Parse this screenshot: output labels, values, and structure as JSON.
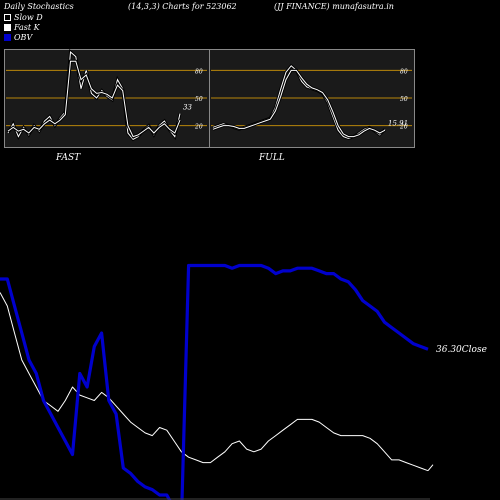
{
  "header": {
    "left": "Daily Stochastics",
    "center": "(14,3,3) Charts for 523062",
    "right": "(JJ FINANCE) munafasutra.in"
  },
  "legend": [
    {
      "label": "Slow  D",
      "color": "#ffffff",
      "style": "outline"
    },
    {
      "label": "Fast K",
      "color": "#ffffff",
      "style": "filled"
    },
    {
      "label": "OBV",
      "color": "#0000cc",
      "style": "filled"
    }
  ],
  "colors": {
    "background": "#000000",
    "panel": "#1a1a1a",
    "level_line": "#b8860b",
    "obv": "#0000cc",
    "price": "#ffffff"
  },
  "chart_data": [
    {
      "type": "line",
      "panel": "fast",
      "title": "FAST",
      "ylim": [
        0,
        100
      ],
      "levels": [
        20,
        50,
        80
      ],
      "level_labels": [
        "20",
        "50",
        "80"
      ],
      "last_value_label": "33",
      "series": [
        {
          "name": "Fast K",
          "values": [
            12,
            22,
            8,
            18,
            10,
            20,
            14,
            25,
            30,
            20,
            28,
            35,
            100,
            95,
            60,
            80,
            55,
            50,
            58,
            52,
            48,
            70,
            60,
            12,
            5,
            8,
            15,
            20,
            10,
            20,
            25,
            15,
            8,
            33
          ]
        },
        {
          "name": "Slow D",
          "values": [
            14,
            18,
            14,
            16,
            12,
            18,
            16,
            22,
            26,
            22,
            26,
            32,
            90,
            90,
            70,
            75,
            60,
            55,
            56,
            54,
            50,
            64,
            58,
            20,
            8,
            10,
            14,
            18,
            12,
            18,
            22,
            16,
            12,
            26
          ]
        }
      ]
    },
    {
      "type": "line",
      "panel": "full",
      "title": "FULL",
      "ylim": [
        0,
        100
      ],
      "levels": [
        20,
        50,
        80
      ],
      "level_labels": [
        "20",
        "50",
        "80"
      ],
      "last_value_label": "15.91",
      "series": [
        {
          "name": "Full K",
          "values": [
            18,
            20,
            22,
            20,
            18,
            16,
            18,
            20,
            22,
            24,
            26,
            28,
            40,
            60,
            78,
            85,
            80,
            68,
            62,
            60,
            58,
            55,
            45,
            30,
            15,
            8,
            6,
            8,
            12,
            16,
            18,
            14,
            10,
            16
          ]
        },
        {
          "name": "Full D",
          "values": [
            16,
            18,
            20,
            20,
            19,
            17,
            17,
            19,
            21,
            23,
            25,
            27,
            36,
            52,
            70,
            80,
            80,
            72,
            65,
            61,
            59,
            56,
            48,
            35,
            20,
            11,
            8,
            8,
            10,
            14,
            17,
            15,
            12,
            15
          ]
        }
      ]
    },
    {
      "type": "line",
      "panel": "obv_price",
      "price_label": "36.30",
      "price_label_suffix": "Close",
      "series": [
        {
          "name": "Close",
          "values": [
            75,
            70,
            60,
            50,
            45,
            40,
            35,
            33,
            31,
            35,
            40,
            37,
            36,
            35,
            38,
            36,
            33,
            30,
            27,
            25,
            23,
            22,
            25,
            24,
            20,
            16,
            14,
            13,
            12,
            12,
            14,
            16,
            19,
            20,
            17,
            16,
            17,
            20,
            22,
            24,
            26,
            28,
            28,
            28,
            27,
            25,
            23,
            22,
            22,
            22,
            22,
            21,
            19,
            16,
            13,
            13,
            12,
            11,
            10,
            9
          ]
        },
        {
          "name": "OBV",
          "values": [
            80,
            80,
            70,
            60,
            50,
            45,
            35,
            30,
            25,
            20,
            15,
            45,
            40,
            55,
            60,
            35,
            30,
            10,
            8,
            5,
            3,
            2,
            0,
            0,
            -5,
            -10,
            85,
            85,
            85,
            85,
            85,
            85,
            84,
            85,
            85,
            85,
            85,
            84,
            82,
            83,
            83,
            84,
            84,
            84,
            83,
            82,
            82,
            80,
            79,
            76,
            72,
            70,
            68,
            64,
            62,
            60,
            58,
            56,
            55,
            54
          ]
        }
      ]
    }
  ]
}
